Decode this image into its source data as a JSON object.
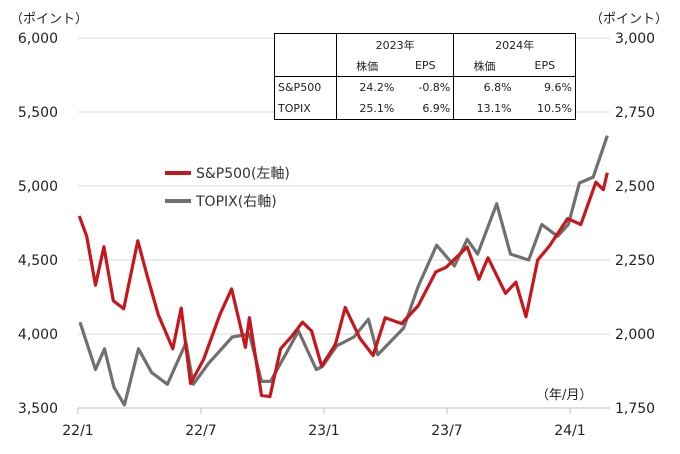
{
  "chart_data": {
    "type": "line",
    "left_axis": {
      "unit_label": "（ポイント）",
      "ylim": [
        3500,
        6000
      ],
      "ticks": [
        "3,500",
        "4,000",
        "4,500",
        "5,000",
        "5,500",
        "6,000"
      ]
    },
    "right_axis": {
      "unit_label": "（ポイント）",
      "ylim": [
        1750,
        3000
      ],
      "ticks": [
        "1,750",
        "2,000",
        "2,250",
        "2,500",
        "2,750",
        "3,000"
      ]
    },
    "x_axis": {
      "unit_label": "（年/月）",
      "ticks": [
        "22/1",
        "22/7",
        "23/1",
        "23/7",
        "24/1"
      ]
    },
    "grid": true,
    "legend_placement": "center-left",
    "series": [
      {
        "name": "S&P500(左軸)",
        "axis": "left",
        "color": "#c8161d",
        "points": [
          [
            "2022-01-03",
            4797
          ],
          [
            "2022-01-14",
            4660
          ],
          [
            "2022-01-27",
            4330
          ],
          [
            "2022-02-09",
            4590
          ],
          [
            "2022-02-23",
            4225
          ],
          [
            "2022-03-08",
            4170
          ],
          [
            "2022-03-29",
            4630
          ],
          [
            "2022-04-12",
            4400
          ],
          [
            "2022-04-29",
            4130
          ],
          [
            "2022-05-20",
            3900
          ],
          [
            "2022-06-02",
            4175
          ],
          [
            "2022-06-16",
            3666
          ],
          [
            "2022-07-05",
            3830
          ],
          [
            "2022-07-29",
            4130
          ],
          [
            "2022-08-16",
            4305
          ],
          [
            "2022-09-06",
            3910
          ],
          [
            "2022-09-12",
            4110
          ],
          [
            "2022-09-30",
            3585
          ],
          [
            "2022-10-12",
            3577
          ],
          [
            "2022-10-28",
            3900
          ],
          [
            "2022-11-15",
            3990
          ],
          [
            "2022-11-30",
            4080
          ],
          [
            "2022-12-13",
            4020
          ],
          [
            "2022-12-28",
            3783
          ],
          [
            "2023-01-18",
            3930
          ],
          [
            "2023-02-02",
            4179
          ],
          [
            "2023-02-24",
            3970
          ],
          [
            "2023-03-13",
            3855
          ],
          [
            "2023-03-31",
            4110
          ],
          [
            "2023-04-25",
            4070
          ],
          [
            "2023-05-19",
            4190
          ],
          [
            "2023-06-15",
            4420
          ],
          [
            "2023-06-30",
            4450
          ],
          [
            "2023-07-31",
            4588
          ],
          [
            "2023-08-18",
            4370
          ],
          [
            "2023-09-01",
            4515
          ],
          [
            "2023-09-27",
            4275
          ],
          [
            "2023-10-12",
            4350
          ],
          [
            "2023-10-27",
            4117
          ],
          [
            "2023-11-14",
            4500
          ],
          [
            "2023-12-01",
            4595
          ],
          [
            "2023-12-28",
            4780
          ],
          [
            "2024-01-17",
            4740
          ],
          [
            "2024-02-09",
            5026
          ],
          [
            "2024-02-20",
            4975
          ],
          [
            "2024-02-26",
            5090
          ]
        ]
      },
      {
        "name": "TOPIX(右軸)",
        "axis": "right",
        "color": "#707070",
        "points": [
          [
            "2022-01-04",
            2040
          ],
          [
            "2022-01-27",
            1880
          ],
          [
            "2022-02-10",
            1950
          ],
          [
            "2022-02-24",
            1820
          ],
          [
            "2022-03-09",
            1760
          ],
          [
            "2022-03-30",
            1950
          ],
          [
            "2022-04-19",
            1870
          ],
          [
            "2022-05-12",
            1830
          ],
          [
            "2022-06-09",
            1970
          ],
          [
            "2022-06-20",
            1830
          ],
          [
            "2022-07-12",
            1900
          ],
          [
            "2022-08-17",
            1990
          ],
          [
            "2022-09-12",
            2000
          ],
          [
            "2022-09-30",
            1840
          ],
          [
            "2022-10-13",
            1840
          ],
          [
            "2022-11-24",
            2010
          ],
          [
            "2022-12-20",
            1880
          ],
          [
            "2022-12-29",
            1890
          ],
          [
            "2023-01-20",
            1960
          ],
          [
            "2023-02-15",
            1990
          ],
          [
            "2023-03-06",
            2050
          ],
          [
            "2023-03-20",
            1930
          ],
          [
            "2023-04-28",
            2020
          ],
          [
            "2023-05-19",
            2160
          ],
          [
            "2023-06-16",
            2300
          ],
          [
            "2023-07-12",
            2230
          ],
          [
            "2023-07-31",
            2320
          ],
          [
            "2023-08-16",
            2270
          ],
          [
            "2023-09-14",
            2440
          ],
          [
            "2023-10-04",
            2270
          ],
          [
            "2023-10-31",
            2250
          ],
          [
            "2023-11-20",
            2370
          ],
          [
            "2023-12-13",
            2330
          ],
          [
            "2023-12-29",
            2370
          ],
          [
            "2024-01-15",
            2510
          ],
          [
            "2024-02-05",
            2530
          ],
          [
            "2024-02-26",
            2670
          ]
        ]
      }
    ],
    "table": {
      "years": [
        "2023年",
        "2024年"
      ],
      "subheaders": [
        "株価",
        "EPS",
        "株価",
        "EPS"
      ],
      "rows": [
        {
          "label": "S&P500",
          "values": [
            "24.2%",
            "-0.8%",
            "6.8%",
            "9.6%"
          ]
        },
        {
          "label": "TOPIX",
          "values": [
            "25.1%",
            "6.9%",
            "13.1%",
            "10.5%"
          ]
        }
      ]
    }
  }
}
